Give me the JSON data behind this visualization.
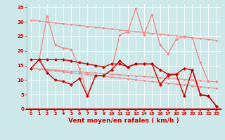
{
  "x": [
    0,
    1,
    2,
    3,
    4,
    5,
    6,
    7,
    8,
    9,
    10,
    11,
    12,
    13,
    14,
    15,
    16,
    17,
    18,
    19,
    20,
    21,
    22,
    23
  ],
  "line_refmax_y": [
    30.5,
    30.2,
    29.9,
    29.6,
    29.3,
    29.0,
    28.7,
    28.4,
    28.1,
    27.8,
    27.5,
    27.2,
    26.9,
    26.6,
    26.3,
    26.0,
    25.7,
    25.4,
    25.1,
    24.8,
    24.5,
    24.2,
    23.9,
    23.6
  ],
  "line_refmin_y": [
    14.0,
    13.7,
    13.4,
    13.1,
    12.8,
    12.5,
    12.2,
    11.9,
    11.6,
    11.3,
    11.0,
    10.7,
    10.4,
    10.1,
    9.8,
    9.5,
    9.2,
    8.9,
    8.6,
    8.3,
    8.0,
    7.7,
    7.4,
    7.1
  ],
  "line_rafales_y": [
    14.0,
    17.0,
    32.0,
    22.0,
    21.0,
    20.5,
    14.0,
    5.0,
    11.5,
    11.5,
    13.5,
    25.5,
    26.5,
    34.5,
    25.5,
    32.5,
    22.0,
    19.0,
    24.0,
    25.0,
    24.5,
    16.0,
    9.5,
    9.5
  ],
  "line_moymax_y": [
    17.0,
    17.0,
    17.0,
    17.0,
    17.0,
    16.5,
    16.0,
    15.5,
    15.0,
    14.5,
    15.5,
    15.5,
    14.5,
    15.5,
    15.5,
    15.5,
    13.5,
    12.0,
    12.0,
    14.0,
    13.5,
    5.0,
    4.5,
    1.0
  ],
  "line_moymin_y": [
    14.0,
    17.0,
    12.5,
    10.0,
    9.5,
    8.5,
    10.5,
    4.5,
    11.5,
    11.5,
    13.5,
    16.5,
    14.5,
    15.5,
    15.5,
    15.5,
    8.5,
    11.5,
    12.0,
    4.5,
    13.5,
    5.0,
    4.5,
    1.0
  ],
  "line_refmin2_y": [
    14.0,
    13.8,
    13.6,
    13.4,
    13.2,
    13.0,
    12.8,
    12.6,
    12.4,
    12.2,
    12.0,
    11.8,
    11.6,
    11.4,
    11.2,
    11.0,
    10.8,
    10.6,
    10.4,
    10.2,
    10.0,
    9.8,
    9.6,
    9.4
  ],
  "color_light": "#f08888",
  "color_dark": "#cc0000",
  "background": "#cce8e8",
  "grid_color": "#ffffff",
  "xlabel": "Vent moyen/en rafales ( km/h )",
  "ylim": [
    0,
    36
  ],
  "xlim": [
    -0.5,
    23.5
  ],
  "yticks": [
    0,
    5,
    10,
    15,
    20,
    25,
    30,
    35
  ]
}
